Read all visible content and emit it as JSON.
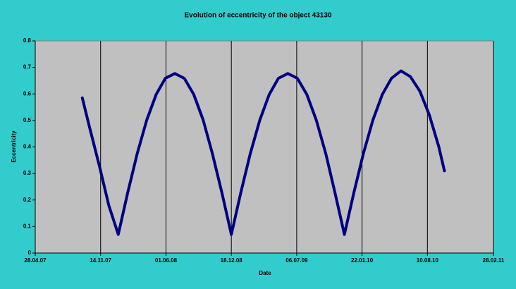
{
  "chart_data": {
    "type": "line",
    "title": "Evolution of eccentricity of the object 43130",
    "x_label": "Date",
    "y_label": "Eccentricity",
    "x": [
      "2007-09-19",
      "2007-10-12",
      "2007-11-10",
      "2007-12-09",
      "2008-01-07",
      "2008-02-05",
      "2008-03-05",
      "2008-04-03",
      "2008-05-02",
      "2008-05-30",
      "2008-06-28",
      "2008-07-27",
      "2008-08-25",
      "2008-09-23",
      "2008-10-21",
      "2008-11-19",
      "2008-12-18",
      "2009-01-16",
      "2009-02-14",
      "2009-03-15",
      "2009-04-13",
      "2009-05-11",
      "2009-06-09",
      "2009-07-08",
      "2009-08-06",
      "2009-09-04",
      "2009-10-03",
      "2009-10-31",
      "2009-11-29",
      "2009-12-28",
      "2010-01-26",
      "2010-02-24",
      "2010-03-25",
      "2010-04-22",
      "2010-05-21",
      "2010-06-19",
      "2010-07-18",
      "2010-08-16",
      "2010-09-14",
      "2010-10-01"
    ],
    "series": [
      {
        "name": "Eccentricity",
        "color": "#000080",
        "values": [
          0.585,
          0.47,
          0.33,
          0.18,
          0.07,
          0.228,
          0.375,
          0.501,
          0.598,
          0.659,
          0.677,
          0.659,
          0.598,
          0.501,
          0.375,
          0.228,
          0.07,
          0.228,
          0.375,
          0.501,
          0.598,
          0.659,
          0.677,
          0.659,
          0.598,
          0.501,
          0.375,
          0.228,
          0.07,
          0.228,
          0.375,
          0.501,
          0.598,
          0.659,
          0.687,
          0.665,
          0.61,
          0.52,
          0.4,
          0.31
        ]
      }
    ],
    "xlim": [
      "2007-04-28",
      "2011-02-28"
    ],
    "xticks": [
      {
        "value": "2007-04-28",
        "label": "28.04.07"
      },
      {
        "value": "2007-11-14",
        "label": "14.11.07"
      },
      {
        "value": "2008-06-01",
        "label": "01.06.08"
      },
      {
        "value": "2008-12-18",
        "label": "18.12.08"
      },
      {
        "value": "2009-07-06",
        "label": "06.07.09"
      },
      {
        "value": "2010-01-22",
        "label": "22.01.10"
      },
      {
        "value": "2010-08-10",
        "label": "10.08.10"
      },
      {
        "value": "2011-02-28",
        "label": "28.02.11"
      }
    ],
    "ylim": [
      0,
      0.8
    ],
    "yticks": [
      0,
      0.1,
      0.2,
      0.3,
      0.4,
      0.5,
      0.6,
      0.7,
      0.8
    ],
    "grid": "x",
    "plot_background": "#c0c0c0"
  }
}
